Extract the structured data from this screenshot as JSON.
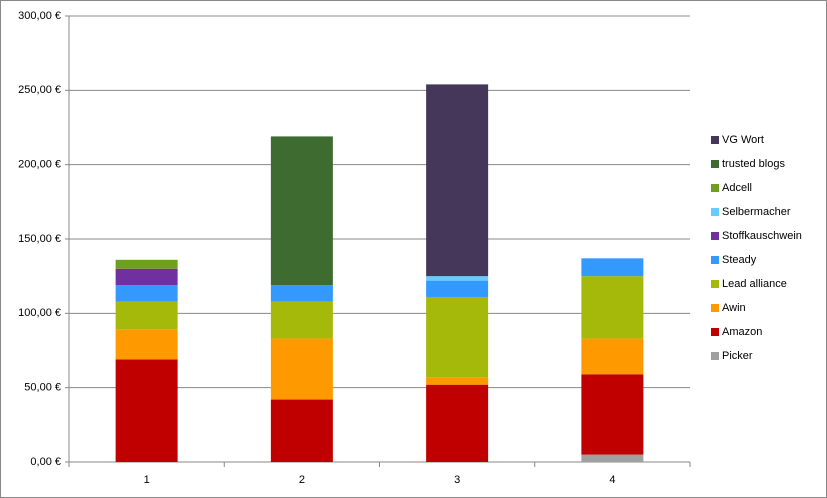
{
  "chart_data": {
    "type": "stacked-bar",
    "categories": [
      "1",
      "2",
      "3",
      "4"
    ],
    "series": [
      {
        "name": "Picker",
        "color": "#a0a0a0",
        "values": [
          null,
          null,
          null,
          5
        ]
      },
      {
        "name": "Amazon",
        "color": "#c00000",
        "values": [
          69,
          42,
          52,
          54
        ]
      },
      {
        "name": "Awin",
        "color": "#ff9900",
        "values": [
          20,
          41,
          5,
          24
        ]
      },
      {
        "name": "Lead alliance",
        "color": "#a5b90a",
        "values": [
          19,
          25,
          54,
          42
        ]
      },
      {
        "name": "Steady",
        "color": "#3399ff",
        "values": [
          11,
          11,
          11,
          12
        ]
      },
      {
        "name": "Stoffkauschwein",
        "color": "#7030a0",
        "values": [
          11,
          null,
          null,
          null
        ]
      },
      {
        "name": "Selbermacher",
        "color": "#66ccff",
        "values": [
          null,
          null,
          3,
          null
        ]
      },
      {
        "name": "Adcell",
        "color": "#6f9f1f",
        "values": [
          6,
          null,
          null,
          null
        ]
      },
      {
        "name": "trusted blogs",
        "color": "#3d6b30",
        "values": [
          null,
          100,
          null,
          null
        ]
      },
      {
        "name": "VG Wort",
        "color": "#45375a",
        "values": [
          null,
          null,
          129,
          null
        ]
      }
    ],
    "ylim": [
      0,
      300
    ],
    "yticks": [
      {
        "value": 0,
        "label": "0,00 €"
      },
      {
        "value": 50,
        "label": "50,00 €"
      },
      {
        "value": 100,
        "label": "100,00 €"
      },
      {
        "value": 150,
        "label": "150,00 €"
      },
      {
        "value": 200,
        "label": "200,00 €"
      },
      {
        "value": 250,
        "label": "250,00 €"
      },
      {
        "value": 300,
        "label": "300,00 €"
      }
    ],
    "grid": true,
    "legend": "right"
  }
}
